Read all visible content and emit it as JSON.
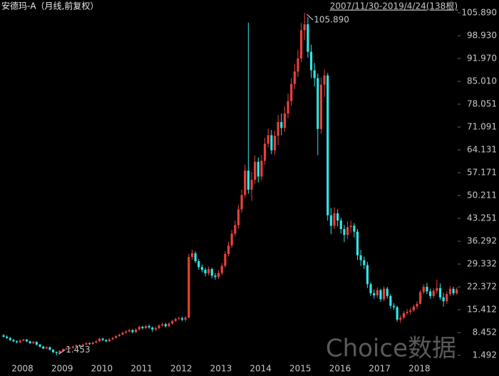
{
  "chart_data": {
    "type": "candlestick",
    "title": "安德玛-A（月线,前复权）",
    "range": "2007/11/30-2019/4/24(138根)",
    "watermark": "Choice数据",
    "annotations": {
      "max": "105.890",
      "min": "1.453"
    },
    "up_color": "#e8403c",
    "down_color": "#2fe6e6",
    "ylim": [
      0,
      109.8
    ],
    "yticks": [
      {
        "value": 105.89,
        "label": "105.890"
      },
      {
        "value": 98.93,
        "label": "98.930"
      },
      {
        "value": 91.97,
        "label": "91.970"
      },
      {
        "value": 85.01,
        "label": "85.010"
      },
      78.051,
      71.091,
      64.131,
      57.171,
      50.211,
      43.251,
      36.292,
      29.332,
      22.372,
      15.412,
      8.452,
      1.492
    ],
    "categories": [
      null,
      null,
      "2008",
      null,
      null,
      null,
      null,
      null,
      null,
      null,
      null,
      null,
      null,
      null,
      "2009",
      null,
      null,
      null,
      null,
      null,
      null,
      null,
      null,
      null,
      null,
      null,
      "2010",
      null,
      null,
      null,
      null,
      null,
      null,
      null,
      null,
      null,
      null,
      null,
      "2011",
      null,
      null,
      null,
      null,
      null,
      null,
      null,
      null,
      null,
      null,
      null,
      "2012",
      null,
      null,
      null,
      null,
      null,
      null,
      null,
      null,
      null,
      null,
      null,
      "2013",
      null,
      null,
      null,
      null,
      null,
      null,
      null,
      null,
      null,
      null,
      null,
      "2014",
      null,
      null,
      null,
      null,
      null,
      null,
      null,
      null,
      null,
      null,
      null,
      "2015",
      null,
      null,
      null,
      null,
      null,
      null,
      null,
      null,
      null,
      null,
      null,
      "2016",
      null,
      null,
      null,
      null,
      null,
      null,
      null,
      null,
      null,
      null,
      null,
      "2017",
      null,
      null,
      null,
      null,
      null,
      null,
      null,
      null,
      null,
      null,
      null,
      "2018",
      null,
      null,
      null,
      null,
      null,
      null,
      null,
      null,
      null,
      null,
      null,
      null,
      null,
      null,
      null
    ],
    "open": [
      7.6,
      7.2,
      6.8,
      6.2,
      5.8,
      5.5,
      6.0,
      6.3,
      5.8,
      5.2,
      5.6,
      4.8,
      4.2,
      3.6,
      4.0,
      3.2,
      2.5,
      2.2,
      2.9,
      3.4,
      3.6,
      3.8,
      4.2,
      4.6,
      4.4,
      4.8,
      5.2,
      5.0,
      5.4,
      5.8,
      6.6,
      6.2,
      5.8,
      6.4,
      6.8,
      7.4,
      7.8,
      8.4,
      8.8,
      9.2,
      8.6,
      9.4,
      10.2,
      9.8,
      10.4,
      10.0,
      9.4,
      9.8,
      10.6,
      11.0,
      10.4,
      11.2,
      12.0,
      12.6,
      12.8,
      12.4,
      13.0,
      31.5,
      32.6,
      30.2,
      28.4,
      27.6,
      26.5,
      27.8,
      25.8,
      25.4,
      26.6,
      28.8,
      32.4,
      35.0,
      38.6,
      41.2,
      46.0,
      50.4,
      57.8,
      52.0,
      55.0,
      60.5,
      56.0,
      60.8,
      66.0,
      68.6,
      64.0,
      68.4,
      72.6,
      70.8,
      75.2,
      79.0,
      84.2,
      88.0,
      92.0,
      100.6,
      102.4,
      94.0,
      88.4,
      86.0,
      70.5,
      84.0,
      86.8,
      44.2,
      41.0,
      44.8,
      42.6,
      40.0,
      38.2,
      40.6,
      41.0,
      39.2,
      32.0,
      30.5,
      29.0,
      23.2,
      20.4,
      19.8,
      21.4,
      18.6,
      21.8,
      19.6,
      16.6,
      16.2,
      12.4,
      13.0,
      14.4,
      14.8,
      15.2,
      16.4,
      17.2,
      20.8,
      22.4,
      21.0,
      19.6,
      21.2,
      22.0,
      19.2,
      18.0,
      20.2,
      21.8,
      20.4
    ],
    "high": [
      8.0,
      7.6,
      7.1,
      6.5,
      6.1,
      6.3,
      6.6,
      6.5,
      6.0,
      5.9,
      5.8,
      5.0,
      4.4,
      4.2,
      4.2,
      3.4,
      2.7,
      3.1,
      3.6,
      3.9,
      4.0,
      4.4,
      4.9,
      4.8,
      5.0,
      5.5,
      5.5,
      5.7,
      6.1,
      6.9,
      6.9,
      6.4,
      6.7,
      7.1,
      7.7,
      8.1,
      8.8,
      9.2,
      9.6,
      9.5,
      9.8,
      10.6,
      10.5,
      10.8,
      10.9,
      10.3,
      10.3,
      11.0,
      11.5,
      11.4,
      11.6,
      12.4,
      13.0,
      13.3,
      13.3,
      13.5,
      32.4,
      33.8,
      33.2,
      30.8,
      29.2,
      28.2,
      28.6,
      28.2,
      26.6,
      27.4,
      29.6,
      33.2,
      36.2,
      39.8,
      42.6,
      47.4,
      52.0,
      59.6,
      102.9,
      57.4,
      62.4,
      61.8,
      62.6,
      67.8,
      70.6,
      70.2,
      70.0,
      74.8,
      75.2,
      77.4,
      81.2,
      86.0,
      90.4,
      94.6,
      102.8,
      105.89,
      104.6,
      96.2,
      90.6,
      87.4,
      86.2,
      88.6,
      87.6,
      46.4,
      46.6,
      46.0,
      43.4,
      41.2,
      42.4,
      42.6,
      41.8,
      40.0,
      33.6,
      31.6,
      30.0,
      23.8,
      21.6,
      22.2,
      21.8,
      22.6,
      22.4,
      20.2,
      17.4,
      16.6,
      13.8,
      15.0,
      15.6,
      16.0,
      17.0,
      18.0,
      21.4,
      23.2,
      23.6,
      21.8,
      22.0,
      24.6,
      23.4,
      20.6,
      21.0,
      22.6,
      22.4,
      22.2
    ],
    "low": [
      6.9,
      6.5,
      5.9,
      5.5,
      5.2,
      5.3,
      5.8,
      5.5,
      5.0,
      5.0,
      4.5,
      3.9,
      3.3,
      3.4,
      3.0,
      2.2,
      1.453,
      2.0,
      2.7,
      3.2,
      3.4,
      3.6,
      4.0,
      4.1,
      4.2,
      4.6,
      4.7,
      4.8,
      5.2,
      5.6,
      5.9,
      5.5,
      5.6,
      6.1,
      6.6,
      7.1,
      7.6,
      8.1,
      8.5,
      8.2,
      8.3,
      9.1,
      9.4,
      9.5,
      9.6,
      8.6,
      8.9,
      9.5,
      10.3,
      10.0,
      10.1,
      10.9,
      11.7,
      12.2,
      11.9,
      11.8,
      12.8,
      30.6,
      29.6,
      27.6,
      26.8,
      25.6,
      25.8,
      25.0,
      24.6,
      24.8,
      26.0,
      28.2,
      31.6,
      34.2,
      37.8,
      40.2,
      45.0,
      49.6,
      50.8,
      48.6,
      53.8,
      54.2,
      54.8,
      59.6,
      64.8,
      62.8,
      62.6,
      65.6,
      68.6,
      69.6,
      73.8,
      77.6,
      82.6,
      86.4,
      90.8,
      97.6,
      92.2,
      86.0,
      83.4,
      62.5,
      69.0,
      80.2,
      42.6,
      38.4,
      40.0,
      40.8,
      38.6,
      36.0,
      37.0,
      38.8,
      37.4,
      30.6,
      28.8,
      27.8,
      22.0,
      19.6,
      18.8,
      19.0,
      17.8,
      18.0,
      18.8,
      15.8,
      15.4,
      11.8,
      11.4,
      12.6,
      13.8,
      14.0,
      14.8,
      15.6,
      17.0,
      20.2,
      20.2,
      18.8,
      19.0,
      20.4,
      18.4,
      16.4,
      17.2,
      19.6,
      19.8,
      20.0
    ],
    "close": [
      7.2,
      6.8,
      6.2,
      5.8,
      5.5,
      6.0,
      6.3,
      5.8,
      5.2,
      5.6,
      4.8,
      4.2,
      3.6,
      4.0,
      3.2,
      2.5,
      2.2,
      2.9,
      3.4,
      3.6,
      3.8,
      4.2,
      4.6,
      4.4,
      4.8,
      5.2,
      5.0,
      5.4,
      5.8,
      6.6,
      6.2,
      5.8,
      6.4,
      6.8,
      7.4,
      7.8,
      8.4,
      8.8,
      9.2,
      8.6,
      9.4,
      10.2,
      9.8,
      10.4,
      10.0,
      9.4,
      9.8,
      10.6,
      11.0,
      10.4,
      11.2,
      12.0,
      12.6,
      12.8,
      12.4,
      13.0,
      31.5,
      32.6,
      30.2,
      28.4,
      27.6,
      26.5,
      27.8,
      25.8,
      25.4,
      26.6,
      28.8,
      32.4,
      35.0,
      38.6,
      41.2,
      46.0,
      50.4,
      57.8,
      52.0,
      55.0,
      60.5,
      56.0,
      60.8,
      66.0,
      68.6,
      64.0,
      68.4,
      72.6,
      70.8,
      75.2,
      79.0,
      84.2,
      88.0,
      92.0,
      100.6,
      102.4,
      94.0,
      88.4,
      86.0,
      70.5,
      84.0,
      86.8,
      44.2,
      41.0,
      44.8,
      42.6,
      40.0,
      38.2,
      40.6,
      41.0,
      39.2,
      32.0,
      30.5,
      29.0,
      23.2,
      20.4,
      19.8,
      21.4,
      18.6,
      21.8,
      19.6,
      16.6,
      16.2,
      12.4,
      13.0,
      14.4,
      14.8,
      15.2,
      16.4,
      17.2,
      20.8,
      22.4,
      21.0,
      19.6,
      21.2,
      22.0,
      19.2,
      18.0,
      20.2,
      21.8,
      20.4,
      21.6
    ]
  }
}
